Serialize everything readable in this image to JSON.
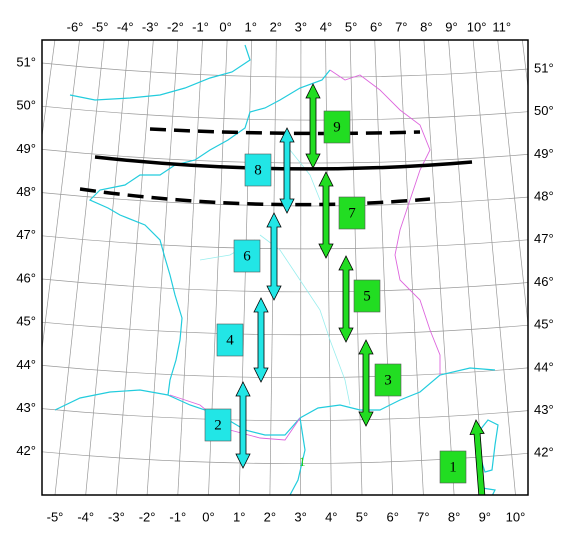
{
  "map": {
    "lon_top": [
      "-6°",
      "-5°",
      "-4°",
      "-3°",
      "-2°",
      "-1°",
      "0°",
      "1°",
      "2°",
      "3°",
      "4°",
      "5°",
      "6°",
      "7°",
      "8°",
      "9°",
      "10°",
      "11°"
    ],
    "lon_bottom": [
      "-5°",
      "-4°",
      "-3°",
      "-2°",
      "-1°",
      "0°",
      "1°",
      "2°",
      "3°",
      "4°",
      "5°",
      "6°",
      "7°",
      "8°",
      "9°",
      "10°"
    ],
    "lat_left": [
      "51°",
      "50°",
      "49°",
      "48°",
      "47°",
      "46°",
      "45°",
      "44°",
      "43°",
      "42°"
    ],
    "lat_right": [
      "51°",
      "50°",
      "49°",
      "48°",
      "47°",
      "46°",
      "45°",
      "44°",
      "43°",
      "42°"
    ],
    "boxes": [
      {
        "label": "1",
        "color": "#22dd22"
      },
      {
        "label": "2",
        "color": "#22e6e6"
      },
      {
        "label": "3",
        "color": "#22dd22"
      },
      {
        "label": "4",
        "color": "#22e6e6"
      },
      {
        "label": "5",
        "color": "#22dd22"
      },
      {
        "label": "6",
        "color": "#22e6e6"
      },
      {
        "label": "7",
        "color": "#22dd22"
      },
      {
        "label": "8",
        "color": "#22e6e6"
      },
      {
        "label": "9",
        "color": "#22dd22"
      }
    ],
    "small_label": "1"
  }
}
